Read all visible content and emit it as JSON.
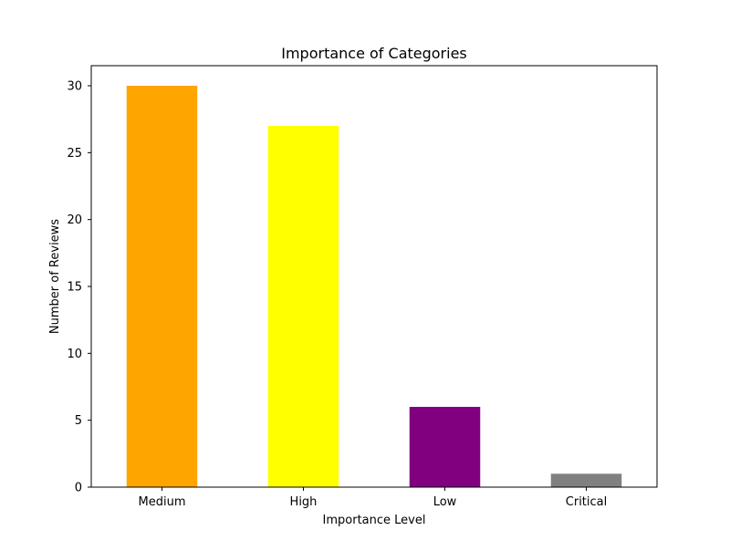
{
  "chart_data": {
    "type": "bar",
    "title": "Importance of Categories",
    "xlabel": "Importance Level",
    "ylabel": "Number of Reviews",
    "categories": [
      "Medium",
      "High",
      "Low",
      "Critical"
    ],
    "values": [
      30,
      27,
      6,
      1
    ],
    "bar_colors": [
      "#FFA500",
      "#FFFF00",
      "#800080",
      "#808080"
    ],
    "ylim": [
      0,
      31.5
    ],
    "yticks": [
      0,
      5,
      10,
      15,
      20,
      25,
      30
    ],
    "grid": false,
    "legend": "none"
  }
}
